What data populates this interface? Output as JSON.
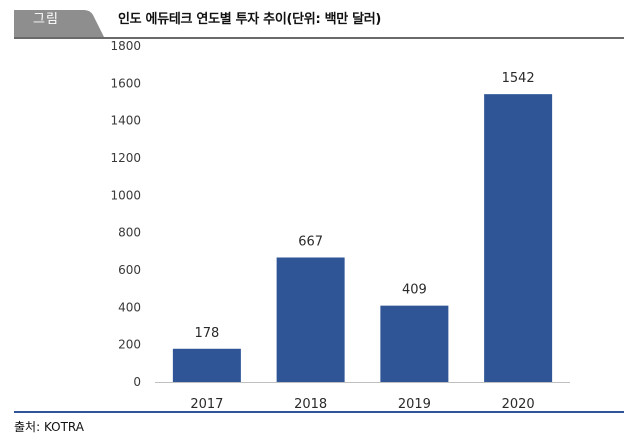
{
  "header": {
    "tag": "그림",
    "title": "인도 에듀테크 연도별 투자 추이(단위: 백만 달러)"
  },
  "source": "출처: KOTRA",
  "colors": {
    "bar": "#2f5597",
    "tag_background": "#8e8e8e",
    "rule": "#2f5598"
  },
  "chart_data": {
    "type": "bar",
    "categories": [
      "2017",
      "2018",
      "2019",
      "2020"
    ],
    "values": [
      178,
      667,
      409,
      1542
    ],
    "data_labels": [
      "178",
      "667",
      "409",
      "1542"
    ],
    "ylim": [
      0,
      1800
    ],
    "yticks": [
      0,
      200,
      400,
      600,
      800,
      1000,
      1200,
      1400,
      1600,
      1800
    ],
    "grid": false,
    "legend": "none"
  }
}
